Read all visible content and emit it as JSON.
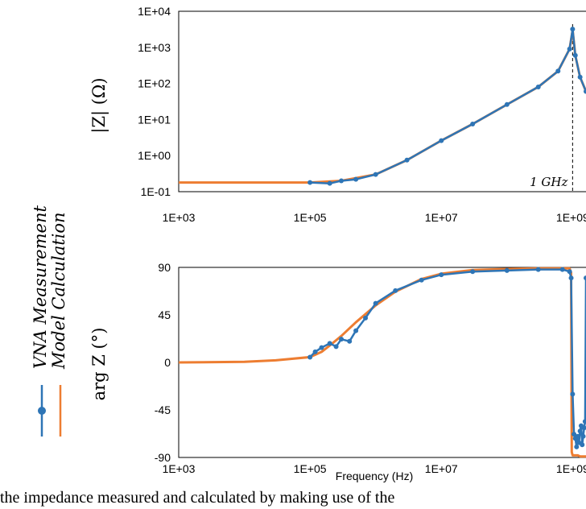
{
  "legend": {
    "items": [
      {
        "label": "VNA Measurement",
        "color": "#2e75b6",
        "marker": "circle-line"
      },
      {
        "label": "Model Calculation",
        "color": "#ed7d31",
        "marker": "line"
      }
    ]
  },
  "colors": {
    "measurement": "#2e75b6",
    "model": "#ed7d31"
  },
  "caption_fragment": "the impedance measured and calculated by making use of the",
  "chart_data": [
    {
      "type": "line",
      "ylabel": "|Z| (Ω)",
      "xlabel": "",
      "x_scale": "log",
      "y_scale": "log",
      "xlim": [
        1000,
        1600000000
      ],
      "ylim": [
        0.1,
        10000
      ],
      "x_ticks": [
        "1E+03",
        "1E+05",
        "1E+07",
        "1E+09"
      ],
      "y_ticks": [
        "1E-01",
        "1E+00",
        "1E+01",
        "1E+02",
        "1E+03",
        "1E+04"
      ],
      "annotation": {
        "text": "1 GHz",
        "x": 1000000000
      },
      "series": [
        {
          "name": "Model Calculation",
          "x": [
            1000,
            10000,
            100000,
            300000,
            1000000,
            3000000,
            10000000,
            30000000,
            100000000,
            300000000,
            600000000,
            900000000,
            1000000000,
            1100000000,
            1300000000,
            1600000000
          ],
          "y": [
            0.18,
            0.18,
            0.18,
            0.2,
            0.3,
            0.75,
            2.6,
            7.5,
            26,
            80,
            220,
            900,
            3000,
            600,
            150,
            60
          ]
        },
        {
          "name": "VNA Measurement",
          "x": [
            100000,
            200000,
            300000,
            500000,
            1000000,
            3000000,
            10000000,
            30000000,
            100000000,
            300000000,
            600000000,
            900000000,
            1000000000,
            1100000000,
            1300000000,
            1600000000
          ],
          "y": [
            0.18,
            0.17,
            0.2,
            0.22,
            0.3,
            0.75,
            2.6,
            7.5,
            26,
            80,
            220,
            900,
            3200,
            600,
            150,
            60
          ]
        }
      ]
    },
    {
      "type": "line",
      "ylabel": "arg Z (°)",
      "xlabel": "Frequency (Hz)",
      "x_scale": "log",
      "xlim": [
        1000,
        1600000000
      ],
      "ylim": [
        -90,
        90
      ],
      "x_ticks": [
        "1E+03",
        "1E+05",
        "1E+07",
        "1E+09"
      ],
      "y_ticks": [
        "90",
        "45",
        "0",
        "-45",
        "-90"
      ],
      "series": [
        {
          "name": "Model Calculation",
          "x": [
            1000,
            10000,
            30000,
            100000,
            150000,
            200000,
            300000,
            500000,
            1000000,
            2000000,
            5000000,
            10000000,
            30000000,
            100000000,
            300000000,
            900000000,
            950000000,
            970000000,
            1000000000,
            1200000000,
            1300000000,
            1350000000,
            1400000000,
            1600000000
          ],
          "y": [
            0,
            0.5,
            2,
            5,
            10,
            16,
            25,
            38,
            54,
            67,
            79,
            84,
            87.5,
            88.5,
            89,
            89,
            85,
            -85,
            -88,
            -88,
            -89,
            -89,
            -89,
            -89
          ]
        },
        {
          "name": "VNA Measurement",
          "x": [
            100000,
            120000,
            150000,
            200000,
            250000,
            300000,
            400000,
            500000,
            700000,
            1000000,
            2000000,
            5000000,
            10000000,
            30000000,
            100000000,
            300000000,
            700000000,
            900000000,
            950000000,
            1000000000,
            1050000000,
            1100000000,
            1150000000,
            1200000000,
            1250000000,
            1300000000,
            1350000000,
            1400000000,
            1450000000,
            1500000000,
            1550000000,
            1600000000
          ],
          "y": [
            5,
            10,
            14,
            18,
            15,
            22,
            20,
            30,
            42,
            56,
            68,
            78,
            83,
            86,
            87,
            88,
            88,
            86,
            80,
            -30,
            -68,
            -72,
            -80,
            -70,
            -76,
            -65,
            -60,
            -78,
            -70,
            -62,
            -56,
            80
          ]
        }
      ]
    }
  ]
}
